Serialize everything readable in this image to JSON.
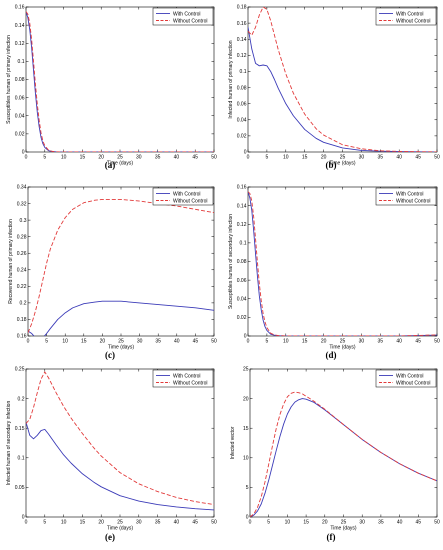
{
  "colors": {
    "with_control": "#3b3bb8",
    "without_control": "#e23a3a"
  },
  "chart_data": [
    {
      "type": "line",
      "panel_label": "(a)",
      "xlabel": "Time (days)",
      "ylabel": "Susceptibles human of primary infection",
      "xlim": [
        0,
        50
      ],
      "ylim": [
        0,
        0.16
      ],
      "xticks": [
        0,
        5,
        10,
        15,
        20,
        25,
        30,
        35,
        40,
        45,
        50
      ],
      "yticks": [
        0,
        0.02,
        0.04,
        0.06,
        0.08,
        0.1,
        0.12,
        0.14,
        0.16
      ],
      "ytick_labels": [
        "0",
        "0.02",
        "0.04",
        "0.06",
        "0.08",
        "0.1",
        "0.12",
        "0.14",
        "0.16"
      ],
      "legend": "top-right",
      "grid": false,
      "series": [
        {
          "name": "With Control",
          "style": "solid",
          "x": [
            0,
            0.5,
            1,
            1.5,
            2,
            2.5,
            3,
            3.5,
            4,
            4.5,
            5,
            6,
            7,
            8,
            10,
            15,
            20,
            30,
            40,
            50
          ],
          "y": [
            0.155,
            0.148,
            0.135,
            0.115,
            0.09,
            0.065,
            0.044,
            0.028,
            0.016,
            0.009,
            0.005,
            0.0015,
            0.0005,
            0.0002,
            0,
            0,
            0,
            0,
            0,
            0
          ]
        },
        {
          "name": "Without Control",
          "style": "dashed",
          "x": [
            0,
            0.5,
            1,
            1.5,
            2,
            2.5,
            3,
            3.5,
            4,
            4.5,
            5,
            6,
            7,
            8,
            10,
            15,
            20,
            30,
            40,
            50
          ],
          "y": [
            0.155,
            0.152,
            0.142,
            0.124,
            0.1,
            0.075,
            0.053,
            0.035,
            0.021,
            0.012,
            0.007,
            0.002,
            0.0007,
            0.0002,
            0,
            0,
            0,
            0,
            0,
            0
          ]
        }
      ]
    },
    {
      "type": "line",
      "panel_label": "(b)",
      "xlabel": "Time (days)",
      "ylabel": "Infected human of primary infection",
      "xlim": [
        0,
        50
      ],
      "ylim": [
        0,
        0.18
      ],
      "xticks": [
        0,
        5,
        10,
        15,
        20,
        25,
        30,
        35,
        40,
        45,
        50
      ],
      "yticks": [
        0,
        0.02,
        0.04,
        0.06,
        0.08,
        0.1,
        0.12,
        0.14,
        0.16,
        0.18
      ],
      "ytick_labels": [
        "0",
        "0.02",
        "0.04",
        "0.06",
        "0.08",
        "0.1",
        "0.12",
        "0.14",
        "0.16",
        "0.18"
      ],
      "legend": "top-right",
      "grid": false,
      "series": [
        {
          "name": "With Control",
          "style": "solid",
          "x": [
            0,
            1,
            2,
            3,
            4,
            5,
            6,
            7,
            8,
            10,
            12,
            15,
            18,
            20,
            25,
            30,
            35,
            40,
            45,
            50
          ],
          "y": [
            0.155,
            0.128,
            0.11,
            0.107,
            0.108,
            0.107,
            0.1,
            0.09,
            0.079,
            0.06,
            0.045,
            0.028,
            0.017,
            0.012,
            0.005,
            0.002,
            0.001,
            0.0005,
            0.0002,
            0.0001
          ]
        },
        {
          "name": "Without Control",
          "style": "dashed",
          "x": [
            0,
            1,
            2,
            3,
            4,
            5,
            6,
            7,
            8,
            10,
            12,
            15,
            18,
            20,
            25,
            30,
            35,
            40,
            45,
            50
          ],
          "y": [
            0.15,
            0.145,
            0.155,
            0.17,
            0.18,
            0.177,
            0.163,
            0.145,
            0.127,
            0.097,
            0.073,
            0.047,
            0.029,
            0.021,
            0.009,
            0.004,
            0.0015,
            0.0007,
            0.0003,
            0.0001
          ]
        }
      ]
    },
    {
      "type": "line",
      "panel_label": "(c)",
      "xlabel": "Time (days)",
      "ylabel": "Recovered human of primary infection",
      "xlim": [
        0,
        50
      ],
      "ylim": [
        0.16,
        0.34
      ],
      "xticks": [
        0,
        5,
        10,
        15,
        20,
        25,
        30,
        35,
        40,
        45,
        50
      ],
      "yticks": [
        0.16,
        0.18,
        0.2,
        0.22,
        0.24,
        0.26,
        0.28,
        0.3,
        0.32,
        0.34
      ],
      "ytick_labels": [
        "0.16",
        "0.18",
        "0.2",
        "0.22",
        "0.24",
        "0.26",
        "0.28",
        "0.3",
        "0.32",
        "0.34"
      ],
      "legend": "top-right",
      "grid": false,
      "series": [
        {
          "name": "With Control",
          "style": "solid",
          "x": [
            0,
            1,
            2,
            3,
            4,
            5,
            6,
            8,
            10,
            12,
            15,
            18,
            20,
            23,
            25,
            30,
            35,
            40,
            45,
            50
          ],
          "y": [
            0.166,
            0.163,
            0.158,
            0.156,
            0.158,
            0.163,
            0.169,
            0.18,
            0.188,
            0.194,
            0.199,
            0.201,
            0.202,
            0.202,
            0.202,
            0.2,
            0.198,
            0.196,
            0.194,
            0.191
          ]
        },
        {
          "name": "Without Control",
          "style": "dashed",
          "x": [
            0,
            1,
            2,
            3,
            4,
            5,
            6,
            8,
            10,
            12,
            15,
            18,
            20,
            23,
            25,
            30,
            35,
            40,
            45,
            50
          ],
          "y": [
            0.164,
            0.175,
            0.19,
            0.208,
            0.228,
            0.248,
            0.265,
            0.288,
            0.303,
            0.313,
            0.321,
            0.324,
            0.325,
            0.325,
            0.325,
            0.323,
            0.32,
            0.317,
            0.313,
            0.309
          ]
        }
      ]
    },
    {
      "type": "line",
      "panel_label": "(d)",
      "xlabel": "Time (days)",
      "ylabel": "Susceptibles human of secondary infection",
      "xlim": [
        0,
        50
      ],
      "ylim": [
        0,
        0.16
      ],
      "xticks": [
        0,
        5,
        10,
        15,
        20,
        25,
        30,
        35,
        40,
        45,
        50
      ],
      "yticks": [
        0,
        0.02,
        0.04,
        0.06,
        0.08,
        0.1,
        0.12,
        0.14,
        0.16
      ],
      "ytick_labels": [
        "0",
        "0.02",
        "0.04",
        "0.06",
        "0.08",
        "0.1",
        "0.12",
        "0.14",
        "0.16"
      ],
      "legend": "top-right",
      "grid": false,
      "series": [
        {
          "name": "With Control",
          "style": "solid",
          "x": [
            0,
            0.5,
            1,
            1.5,
            2,
            2.5,
            3,
            3.5,
            4,
            4.5,
            5,
            6,
            7,
            8,
            10,
            15,
            20,
            30,
            40,
            45,
            50
          ],
          "y": [
            0.155,
            0.148,
            0.135,
            0.113,
            0.088,
            0.064,
            0.043,
            0.028,
            0.017,
            0.01,
            0.006,
            0.002,
            0.0008,
            0.0003,
            0.0001,
            0,
            0,
            0,
            0,
            0.0005,
            0.001
          ]
        },
        {
          "name": "Without Control",
          "style": "dashed",
          "x": [
            0,
            0.5,
            1,
            1.5,
            2,
            2.5,
            3,
            3.5,
            4,
            4.5,
            5,
            6,
            7,
            8,
            10,
            15,
            20,
            30,
            40,
            45,
            50
          ],
          "y": [
            0.155,
            0.153,
            0.145,
            0.128,
            0.104,
            0.079,
            0.056,
            0.038,
            0.024,
            0.015,
            0.009,
            0.003,
            0.0012,
            0.0005,
            0.0001,
            0,
            0,
            0,
            0,
            0.0006,
            0.0012
          ]
        }
      ]
    },
    {
      "type": "line",
      "panel_label": "(e)",
      "xlabel": "Time (days)",
      "ylabel": "Infected human of secondary infection",
      "xlim": [
        0,
        50
      ],
      "ylim": [
        0,
        0.25
      ],
      "xticks": [
        0,
        5,
        10,
        15,
        20,
        25,
        30,
        35,
        40,
        45,
        50
      ],
      "yticks": [
        0,
        0.05,
        0.1,
        0.15,
        0.2,
        0.25
      ],
      "ytick_labels": [
        "0",
        "0.05",
        "0.1",
        "0.15",
        "0.2",
        "0.25"
      ],
      "legend": "top-right",
      "grid": false,
      "series": [
        {
          "name": "With Control",
          "style": "solid",
          "x": [
            0,
            1,
            2,
            3,
            4,
            5,
            6,
            8,
            10,
            12,
            15,
            18,
            20,
            25,
            30,
            35,
            40,
            45,
            50
          ],
          "y": [
            0.16,
            0.138,
            0.132,
            0.138,
            0.146,
            0.148,
            0.14,
            0.122,
            0.105,
            0.091,
            0.073,
            0.059,
            0.051,
            0.036,
            0.027,
            0.021,
            0.017,
            0.014,
            0.012
          ]
        },
        {
          "name": "Without Control",
          "style": "dashed",
          "x": [
            0,
            1,
            2,
            3,
            4,
            5,
            6,
            8,
            10,
            12,
            15,
            18,
            20,
            25,
            30,
            35,
            40,
            45,
            50
          ],
          "y": [
            0.158,
            0.165,
            0.185,
            0.21,
            0.233,
            0.245,
            0.235,
            0.21,
            0.187,
            0.167,
            0.141,
            0.117,
            0.103,
            0.075,
            0.056,
            0.043,
            0.033,
            0.026,
            0.021
          ]
        }
      ]
    },
    {
      "type": "line",
      "panel_label": "(f)",
      "xlabel": "Time (days)",
      "ylabel": "Infected vector",
      "xlim": [
        0,
        50
      ],
      "ylim": [
        0,
        25
      ],
      "xticks": [
        0,
        5,
        10,
        15,
        20,
        25,
        30,
        35,
        40,
        45,
        50
      ],
      "yticks": [
        0,
        5,
        10,
        15,
        20,
        25
      ],
      "ytick_labels": [
        "0",
        "5",
        "10",
        "15",
        "20",
        "25"
      ],
      "legend": "top-right",
      "grid": false,
      "series": [
        {
          "name": "With Control",
          "style": "solid",
          "x": [
            0,
            1,
            2,
            3,
            4,
            5,
            6,
            7,
            8,
            9,
            10,
            11,
            12,
            13,
            14,
            15,
            17,
            20,
            25,
            30,
            35,
            40,
            45,
            50
          ],
          "y": [
            0,
            0.3,
            1.0,
            2.2,
            4.0,
            6.2,
            8.7,
            11.2,
            13.6,
            15.7,
            17.4,
            18.6,
            19.4,
            19.8,
            20.0,
            19.9,
            19.4,
            18.1,
            15.6,
            13.1,
            10.9,
            9.0,
            7.4,
            6.1
          ]
        },
        {
          "name": "Without Control",
          "style": "dashed",
          "x": [
            0,
            1,
            2,
            3,
            4,
            5,
            6,
            7,
            8,
            9,
            10,
            11,
            12,
            13,
            14,
            15,
            17,
            20,
            25,
            30,
            35,
            40,
            45,
            50
          ],
          "y": [
            0,
            0.5,
            1.6,
            3.4,
            5.9,
            8.9,
            12.0,
            14.9,
            17.3,
            19.1,
            20.3,
            20.9,
            21.1,
            21.0,
            20.8,
            20.4,
            19.6,
            18.2,
            15.6,
            13.1,
            10.9,
            9.0,
            7.4,
            6.1
          ]
        }
      ]
    }
  ]
}
